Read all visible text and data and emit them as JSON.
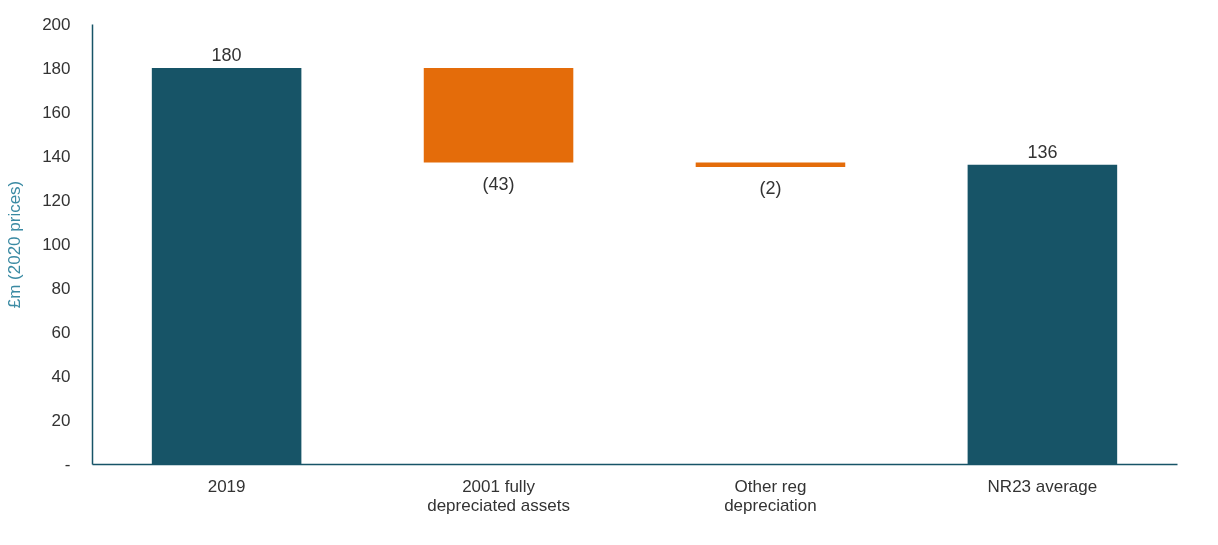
{
  "chart_data": {
    "type": "bar",
    "ylabel": "£m (2020 prices)",
    "categories": [
      "2019",
      "2001 fully depreciated assets",
      "Other reg depreciation",
      "NR23 average"
    ],
    "values": [
      180,
      -43,
      -2,
      136
    ],
    "base": [
      0,
      180,
      137,
      0
    ],
    "colors": [
      "#175467",
      "#e46c0a",
      "#e46c0a",
      "#175467"
    ],
    "value_labels": [
      "180",
      "(43)",
      "(2)",
      "136"
    ],
    "ylim": [
      0,
      200
    ],
    "yticks": [
      {
        "value": 0,
        "label": "-"
      },
      20,
      40,
      60,
      80,
      100,
      120,
      140,
      160,
      180,
      200
    ],
    "grid": false
  }
}
